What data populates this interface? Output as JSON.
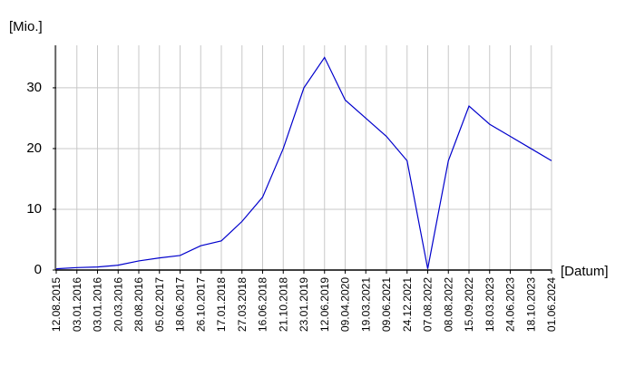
{
  "chart_data": {
    "type": "line",
    "y_label": "[Mio.]",
    "x_label": "[Datum]",
    "categories": [
      "12.08.2015",
      "03.01.2016",
      "03.01.2016",
      "20.03.2016",
      "28.08.2016",
      "05.02.2017",
      "18.06.2017",
      "26.10.2017",
      "17.01.2018",
      "27.03.2018",
      "16.06.2018",
      "21.10.2018",
      "23.01.2019",
      "12.06.2019",
      "09.04.2020",
      "19.03.2021",
      "09.06.2021",
      "24.12.2021",
      "07.08.2022",
      "08.08.2022",
      "15.09.2022",
      "18.03.2023",
      "24.06.2023",
      "18.10.2023",
      "01.06.2024"
    ],
    "series": [
      {
        "color": "#0000cc",
        "values": [
          0.2,
          0.4,
          0.5,
          0.8,
          1.5,
          2.0,
          2.4,
          4.0,
          4.8,
          8.0,
          12,
          20,
          30,
          35,
          28,
          25,
          22,
          18,
          0.2,
          18,
          27,
          24,
          22,
          20,
          18
        ]
      }
    ],
    "ylim": [
      0,
      37
    ],
    "yticks": [
      0,
      10,
      20,
      30
    ],
    "grid": true
  }
}
